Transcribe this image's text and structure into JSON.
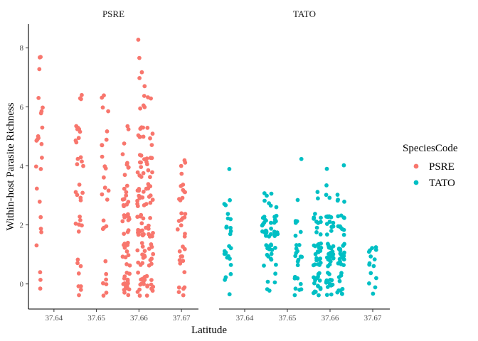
{
  "colors": {
    "PSRE": "#F8766D",
    "TATO": "#00BFC4"
  },
  "chart_data": {
    "type": "scatter",
    "jitter": true,
    "xlabel": "Latitude",
    "ylabel": "Within-host Parasite Richness",
    "x_ticks": [
      "37.64",
      "37.65",
      "37.66",
      "37.67"
    ],
    "y_ticks": [
      "0",
      "2",
      "4",
      "6",
      "8"
    ],
    "xlim": [
      37.634,
      37.674
    ],
    "ylim": [
      -0.85,
      8.8
    ],
    "grid": false,
    "legend": {
      "title": "SpeciesCode",
      "position": "right",
      "entries": [
        "PSRE",
        "TATO"
      ]
    },
    "panels": [
      {
        "strip_label": "PSRE",
        "series": "PSRE",
        "clusters": [
          {
            "x": 37.6365,
            "counts": [
              3,
              1,
              3,
              2,
              3,
              6,
              4,
              1,
              2
            ]
          },
          {
            "x": 37.646,
            "counts": [
              5,
              3,
              6,
              6,
              5,
              8,
              3,
              0,
              0
            ]
          },
          {
            "x": 37.652,
            "counts": [
              6,
              1,
              4,
              4,
              4,
              4,
              4,
              0,
              0
            ]
          },
          {
            "x": 37.657,
            "counts": [
              18,
              12,
              12,
              10,
              6,
              3,
              0,
              0,
              0
            ]
          },
          {
            "x": 37.6605,
            "counts": [
              12,
              12,
              14,
              12,
              10,
              7,
              4,
              3,
              2
            ]
          },
          {
            "x": 37.6625,
            "counts": [
              9,
              8,
              10,
              10,
              8,
              4,
              2,
              0,
              0
            ]
          },
          {
            "x": 37.67,
            "counts": [
              6,
              8,
              10,
              8,
              4,
              0,
              0,
              0,
              0
            ]
          }
        ]
      },
      {
        "strip_label": "TATO",
        "series": "TATO",
        "clusters": [
          {
            "x": 37.636,
            "counts": [
              4,
              10,
              8,
              3,
              1,
              0,
              0,
              0,
              0
            ]
          },
          {
            "x": 37.645,
            "counts": [
              3,
              8,
              14,
              4,
              0,
              0,
              0,
              0,
              0
            ]
          },
          {
            "x": 37.647,
            "counts": [
              2,
              8,
              14,
              3,
              0,
              0,
              0,
              0,
              0
            ]
          },
          {
            "x": 37.6525,
            "counts": [
              8,
              12,
              5,
              1,
              1,
              0,
              0,
              0,
              0
            ]
          },
          {
            "x": 37.657,
            "counts": [
              18,
              22,
              10,
              2,
              0,
              0,
              0,
              0,
              0
            ]
          },
          {
            "x": 37.66,
            "counts": [
              16,
              22,
              12,
              3,
              1,
              0,
              0,
              0,
              0
            ]
          },
          {
            "x": 37.6625,
            "counts": [
              10,
              18,
              10,
              4,
              1,
              0,
              0,
              0,
              0
            ]
          },
          {
            "x": 37.67,
            "counts": [
              5,
              10,
              0,
              0,
              0,
              0,
              0,
              0,
              0
            ]
          }
        ]
      }
    ]
  }
}
